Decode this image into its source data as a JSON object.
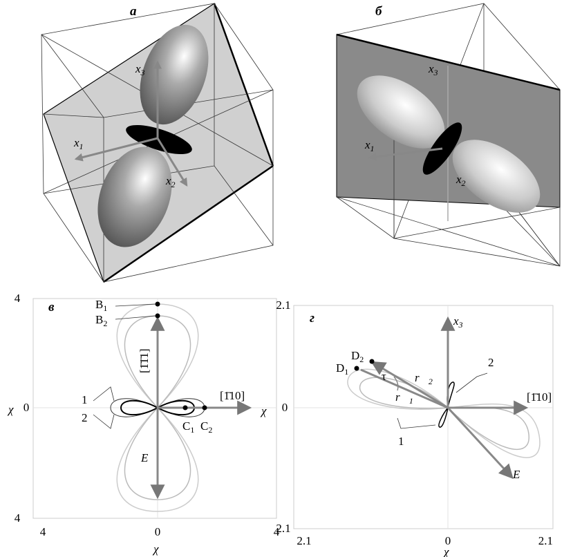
{
  "panels": [
    {
      "label": "а",
      "axes": [
        {
          "symbol": "x",
          "index": "3"
        },
        {
          "symbol": "x",
          "index": "1"
        },
        {
          "symbol": "x",
          "index": "2"
        }
      ]
    },
    {
      "label": "б",
      "axes": [
        {
          "symbol": "x",
          "index": "3"
        },
        {
          "symbol": "x",
          "index": "1"
        },
        {
          "symbol": "x",
          "index": "2"
        }
      ]
    },
    {
      "label": "в",
      "y_ticks": [
        "4",
        "0",
        "4"
      ],
      "x_ticks": [
        "4",
        "0",
        "4"
      ],
      "axis_label": "χ",
      "points": [
        {
          "symbol": "B",
          "index": "1"
        },
        {
          "symbol": "B",
          "index": "2"
        },
        {
          "symbol": "C",
          "index": "1"
        },
        {
          "symbol": "C",
          "index": "2"
        }
      ],
      "directions": [
        "[1̄1̄1]",
        "[1̄10]"
      ],
      "field": "E⃗",
      "curves": [
        "1",
        "2"
      ]
    },
    {
      "label": "г",
      "y_ticks": [
        "2.1",
        "0",
        "2.1"
      ],
      "x_ticks": [
        "2.1",
        "0",
        "2.1"
      ],
      "axis_label": "χ",
      "vertical_axis": {
        "symbol": "x",
        "index": "3"
      },
      "points": [
        {
          "symbol": "D",
          "index": "1"
        },
        {
          "symbol": "D",
          "index": "2"
        }
      ],
      "angle": "τ",
      "vectors": [
        {
          "symbol": "r⃗",
          "index": "2"
        },
        {
          "symbol": "r⃗",
          "index": "1"
        }
      ],
      "direction": "[1̄10]",
      "field": "E⃗",
      "curves": [
        "2",
        "1"
      ]
    }
  ]
}
